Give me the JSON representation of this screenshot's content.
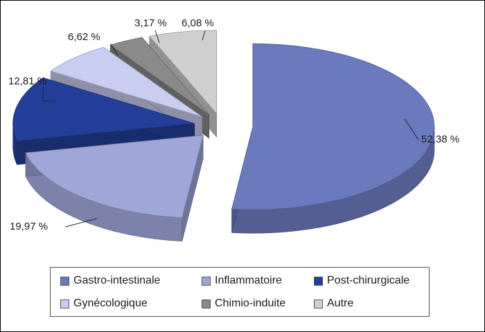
{
  "chart_data": {
    "type": "pie",
    "categories": [
      "Gastro-intestinale",
      "Inflammatoire",
      "Post-chirurgicale",
      "Gynécologique",
      "Chimio-induite",
      "Autre"
    ],
    "values": [
      52.38,
      19.97,
      12.81,
      6.62,
      3.17,
      6.08
    ],
    "value_labels": [
      "52,38 %",
      "19,97 %",
      "12,81 %",
      "6,62 %",
      "3,17 %",
      "6,08 %"
    ],
    "colors": [
      "#6b79bd",
      "#9fa7d9",
      "#243f9a",
      "#c9cdf0",
      "#8a8a8a",
      "#cfcfcf"
    ],
    "exploded": true,
    "style": "3d",
    "legend_position": "bottom"
  }
}
